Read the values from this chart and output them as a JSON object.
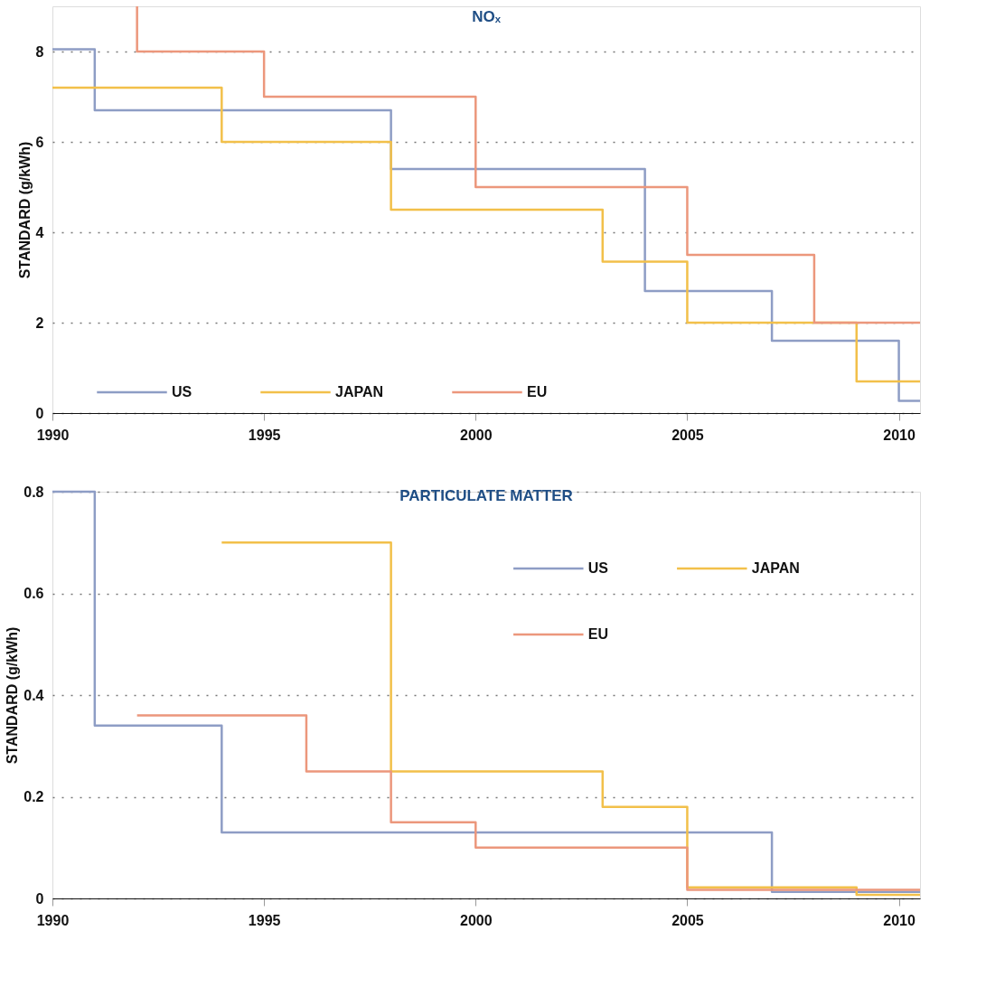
{
  "chart_data": [
    {
      "type": "step",
      "title": "NOₓ",
      "ylabel": "STANDARD (g/kWh)",
      "xlim": [
        1990,
        2010.5
      ],
      "xticks": [
        1990,
        1995,
        2000,
        2005,
        2010
      ],
      "ylim": [
        0,
        9
      ],
      "yticks": [
        0,
        2,
        4,
        6,
        8
      ],
      "grid": "y",
      "legend": "bottom",
      "series": [
        {
          "name": "US",
          "color": "#8e9dc5",
          "x": [
            1990,
            1991,
            1998,
            2004,
            2007,
            2010,
            2010.5
          ],
          "values": [
            8.05,
            6.7,
            5.4,
            2.7,
            1.6,
            0.27,
            0.27
          ]
        },
        {
          "name": "JAPAN",
          "color": "#f2c04a",
          "x": [
            1990,
            1994,
            1998,
            2003,
            2005,
            2009,
            2010.5
          ],
          "values": [
            7.2,
            6.0,
            4.5,
            3.35,
            2.0,
            0.7,
            0.7
          ]
        },
        {
          "name": "EU",
          "color": "#ec977c",
          "x": [
            1992,
            1992,
            1995,
            2000,
            2005,
            2008,
            2010.5
          ],
          "values": [
            9.0,
            8.0,
            7.0,
            5.0,
            3.5,
            2.0,
            2.0
          ]
        }
      ]
    },
    {
      "type": "step",
      "title": "PARTICULATE MATTER",
      "ylabel": "STANDARD (g/kWh)",
      "xlim": [
        1990,
        2010.5
      ],
      "xticks": [
        1990,
        1995,
        2000,
        2005,
        2010
      ],
      "ylim": [
        0,
        0.8
      ],
      "yticks": [
        0,
        0.2,
        0.4,
        0.6,
        0.8
      ],
      "grid": "y",
      "legend": "top right",
      "series": [
        {
          "name": "US",
          "color": "#8e9dc5",
          "x": [
            1990,
            1991,
            1994,
            2007,
            2010.5
          ],
          "values": [
            0.8,
            0.34,
            0.13,
            0.013,
            0.013
          ]
        },
        {
          "name": "JAPAN",
          "color": "#f2c04a",
          "x": [
            1994,
            1998,
            2003,
            2005,
            2009,
            2010.5
          ],
          "values": [
            0.7,
            0.25,
            0.18,
            0.022,
            0.007,
            0.007
          ]
        },
        {
          "name": "EU",
          "color": "#ec977c",
          "x": [
            1992,
            1996,
            1998,
            2000,
            2005,
            2010.5
          ],
          "values": [
            0.36,
            0.25,
            0.15,
            0.1,
            0.017,
            0.017
          ]
        }
      ]
    }
  ]
}
